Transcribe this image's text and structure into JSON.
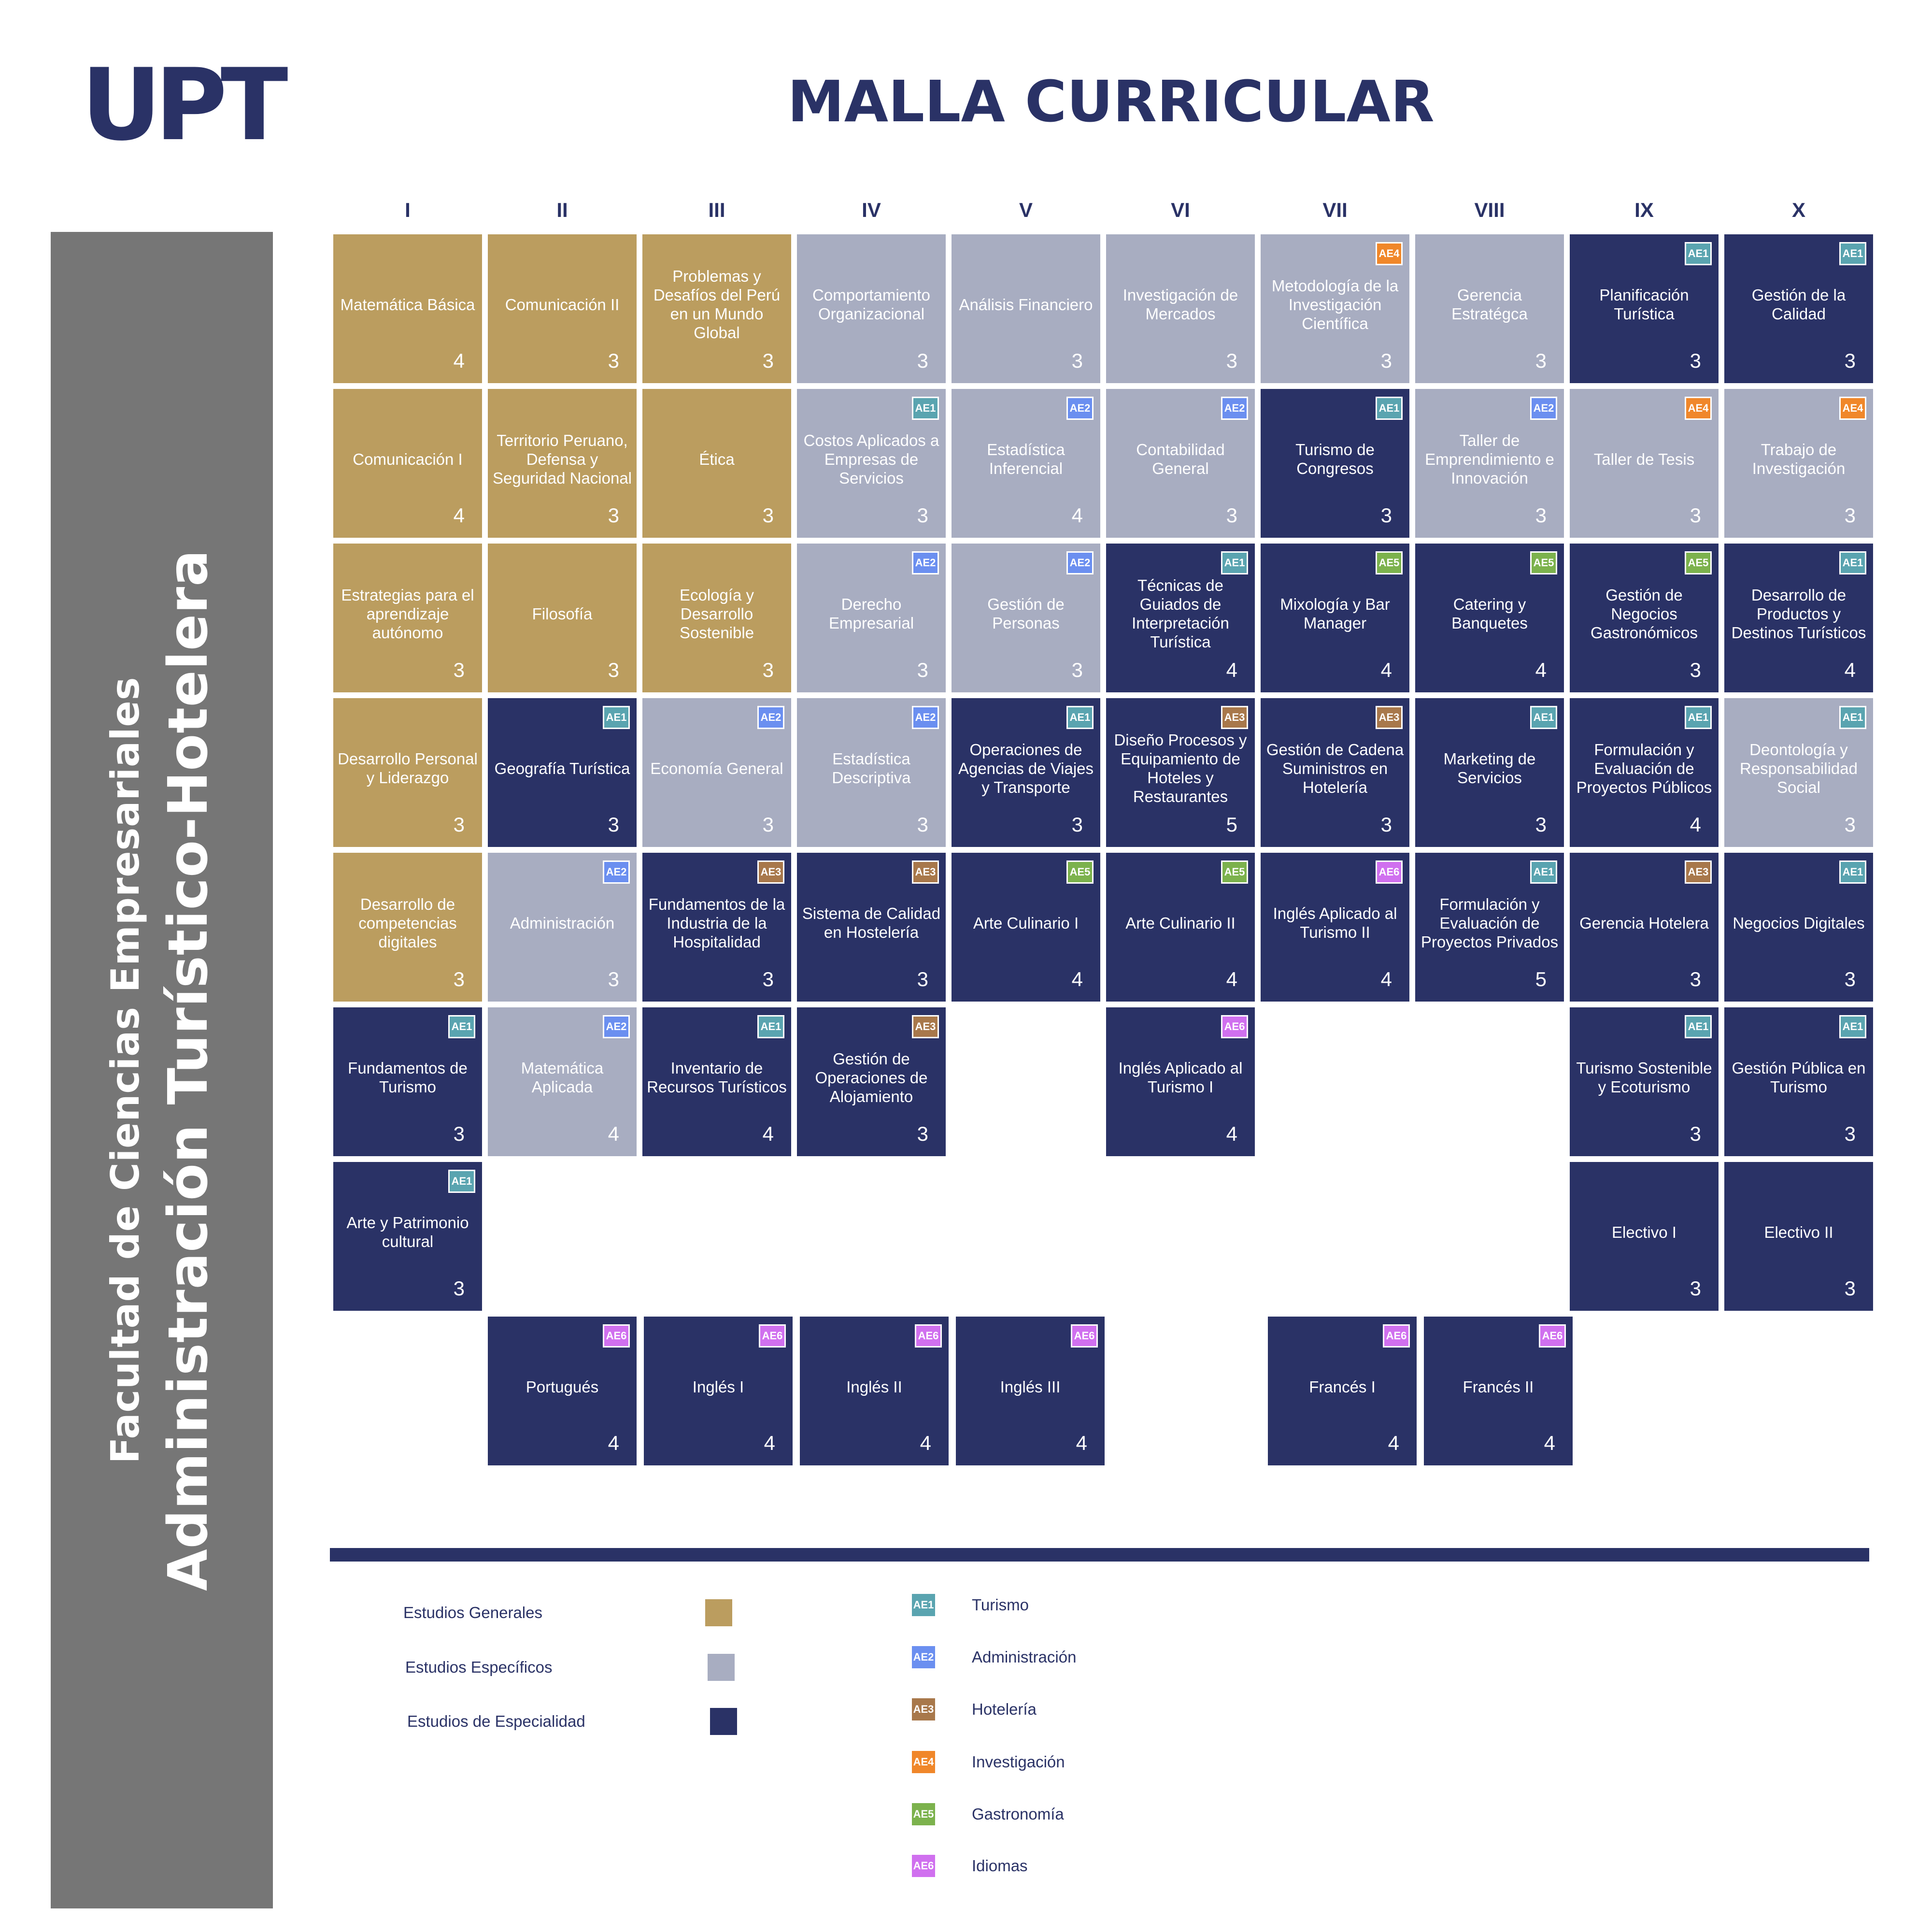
{
  "header": {
    "logo_text": "UPT",
    "title": "MALLA CURRICULAR"
  },
  "sidebar": {
    "faculty": "Facultad de Ciencias Empresariales",
    "career": "Administración Turístico-Hotelera"
  },
  "semesters": [
    "I",
    "II",
    "III",
    "IV",
    "V",
    "VI",
    "VII",
    "VIII",
    "IX",
    "X"
  ],
  "colors": {
    "general": "#bb9d5f",
    "especifico": "#a8adc1",
    "especialidad": "#2a3266",
    "AE1": "#5aa4b0",
    "AE2": "#6b8ff0",
    "AE3": "#a8784b",
    "AE4": "#f0872a",
    "AE5": "#7cb24d",
    "AE6": "#d070ef"
  },
  "courses": [
    {
      "col": 0,
      "row": 0,
      "name": "Matemática Básica",
      "credits": "4",
      "type": "general",
      "badge": ""
    },
    {
      "col": 1,
      "row": 0,
      "name": "Comunicación II",
      "credits": "3",
      "type": "general",
      "badge": ""
    },
    {
      "col": 2,
      "row": 0,
      "name": "Problemas y Desafíos del Perú en un Mundo Global",
      "credits": "3",
      "type": "general",
      "badge": ""
    },
    {
      "col": 3,
      "row": 0,
      "name": "Comportamiento Organizacional",
      "credits": "3",
      "type": "especifico",
      "badge": ""
    },
    {
      "col": 4,
      "row": 0,
      "name": "Análisis Financiero",
      "credits": "3",
      "type": "especifico",
      "badge": ""
    },
    {
      "col": 5,
      "row": 0,
      "name": "Investigación de Mercados",
      "credits": "3",
      "type": "especifico",
      "badge": ""
    },
    {
      "col": 6,
      "row": 0,
      "name": "Metodología de la Investigación Científica",
      "credits": "3",
      "type": "especifico",
      "badge": "AE4"
    },
    {
      "col": 7,
      "row": 0,
      "name": "Gerencia Estratégca",
      "credits": "3",
      "type": "especifico",
      "badge": ""
    },
    {
      "col": 8,
      "row": 0,
      "name": "Planificación Turística",
      "credits": "3",
      "type": "especialidad",
      "badge": "AE1"
    },
    {
      "col": 9,
      "row": 0,
      "name": "Gestión de la Calidad",
      "credits": "3",
      "type": "especialidad",
      "badge": "AE1"
    },
    {
      "col": 0,
      "row": 1,
      "name": "Comunicación I",
      "credits": "4",
      "type": "general",
      "badge": ""
    },
    {
      "col": 1,
      "row": 1,
      "name": "Territorio Peruano, Defensa y Seguridad Nacional",
      "credits": "3",
      "type": "general",
      "badge": ""
    },
    {
      "col": 2,
      "row": 1,
      "name": "Ética",
      "credits": "3",
      "type": "general",
      "badge": ""
    },
    {
      "col": 3,
      "row": 1,
      "name": "Costos Aplicados a Empresas de Servicios",
      "credits": "3",
      "type": "especifico",
      "badge": "AE1"
    },
    {
      "col": 4,
      "row": 1,
      "name": "Estadística Inferencial",
      "credits": "4",
      "type": "especifico",
      "badge": "AE2"
    },
    {
      "col": 5,
      "row": 1,
      "name": "Contabilidad General",
      "credits": "3",
      "type": "especifico",
      "badge": "AE2"
    },
    {
      "col": 6,
      "row": 1,
      "name": "Turismo de Congresos",
      "credits": "3",
      "type": "especialidad",
      "badge": "AE1"
    },
    {
      "col": 7,
      "row": 1,
      "name": "Taller de Emprendimiento e Innovación",
      "credits": "3",
      "type": "especifico",
      "badge": "AE2"
    },
    {
      "col": 8,
      "row": 1,
      "name": "Taller de Tesis",
      "credits": "3",
      "type": "especifico",
      "badge": "AE4"
    },
    {
      "col": 9,
      "row": 1,
      "name": "Trabajo de Investigación",
      "credits": "3",
      "type": "especifico",
      "badge": "AE4"
    },
    {
      "col": 0,
      "row": 2,
      "name": "Estrategias para el aprendizaje autónomo",
      "credits": "3",
      "type": "general",
      "badge": ""
    },
    {
      "col": 1,
      "row": 2,
      "name": "Filosofía",
      "credits": "3",
      "type": "general",
      "badge": ""
    },
    {
      "col": 2,
      "row": 2,
      "name": "Ecología y Desarrollo Sostenible",
      "credits": "3",
      "type": "general",
      "badge": ""
    },
    {
      "col": 3,
      "row": 2,
      "name": "Derecho Empresarial",
      "credits": "3",
      "type": "especifico",
      "badge": "AE2"
    },
    {
      "col": 4,
      "row": 2,
      "name": "Gestión de Personas",
      "credits": "3",
      "type": "especifico",
      "badge": "AE2"
    },
    {
      "col": 5,
      "row": 2,
      "name": "Técnicas de Guiados de Interpretación Turística",
      "credits": "4",
      "type": "especialidad",
      "badge": "AE1"
    },
    {
      "col": 6,
      "row": 2,
      "name": "Mixología y Bar Manager",
      "credits": "4",
      "type": "especialidad",
      "badge": "AE5"
    },
    {
      "col": 7,
      "row": 2,
      "name": "Catering y Banquetes",
      "credits": "4",
      "type": "especialidad",
      "badge": "AE5"
    },
    {
      "col": 8,
      "row": 2,
      "name": "Gestión de Negocios Gastronómicos",
      "credits": "3",
      "type": "especialidad",
      "badge": "AE5"
    },
    {
      "col": 9,
      "row": 2,
      "name": "Desarrollo de Productos y Destinos Turísticos",
      "credits": "4",
      "type": "especialidad",
      "badge": "AE1"
    },
    {
      "col": 0,
      "row": 3,
      "name": "Desarrollo Personal y Liderazgo",
      "credits": "3",
      "type": "general",
      "badge": ""
    },
    {
      "col": 1,
      "row": 3,
      "name": "Geografía Turística",
      "credits": "3",
      "type": "especialidad",
      "badge": "AE1"
    },
    {
      "col": 2,
      "row": 3,
      "name": "Economía General",
      "credits": "3",
      "type": "especifico",
      "badge": "AE2"
    },
    {
      "col": 3,
      "row": 3,
      "name": "Estadística Descriptiva",
      "credits": "3",
      "type": "especifico",
      "badge": "AE2"
    },
    {
      "col": 4,
      "row": 3,
      "name": "Operaciones de Agencias de Viajes y Transporte",
      "credits": "3",
      "type": "especialidad",
      "badge": "AE1"
    },
    {
      "col": 5,
      "row": 3,
      "name": "Diseño Procesos y Equipamiento de Hoteles y Restaurantes",
      "credits": "5",
      "type": "especialidad",
      "badge": "AE3"
    },
    {
      "col": 6,
      "row": 3,
      "name": "Gestión de Cadena Suministros en Hotelería",
      "credits": "3",
      "type": "especialidad",
      "badge": "AE3"
    },
    {
      "col": 7,
      "row": 3,
      "name": "Marketing de Servicios",
      "credits": "3",
      "type": "especialidad",
      "badge": "AE1"
    },
    {
      "col": 8,
      "row": 3,
      "name": "Formulación y Evaluación de Proyectos Públicos",
      "credits": "4",
      "type": "especialidad",
      "badge": "AE1"
    },
    {
      "col": 9,
      "row": 3,
      "name": "Deontología y Responsabilidad Social",
      "credits": "3",
      "type": "especifico",
      "badge": "AE1"
    },
    {
      "col": 0,
      "row": 4,
      "name": "Desarrollo de competencias digitales",
      "credits": "3",
      "type": "general",
      "badge": ""
    },
    {
      "col": 1,
      "row": 4,
      "name": "Administración",
      "credits": "3",
      "type": "especifico",
      "badge": "AE2"
    },
    {
      "col": 2,
      "row": 4,
      "name": "Fundamentos de la Industria de la Hospitalidad",
      "credits": "3",
      "type": "especialidad",
      "badge": "AE3"
    },
    {
      "col": 3,
      "row": 4,
      "name": "Sistema de Calidad en Hostelería",
      "credits": "3",
      "type": "especialidad",
      "badge": "AE3"
    },
    {
      "col": 4,
      "row": 4,
      "name": "Arte Culinario I",
      "credits": "4",
      "type": "especialidad",
      "badge": "AE5"
    },
    {
      "col": 5,
      "row": 4,
      "name": "Arte Culinario II",
      "credits": "4",
      "type": "especialidad",
      "badge": "AE5"
    },
    {
      "col": 6,
      "row": 4,
      "name": "Inglés Aplicado al Turismo II",
      "credits": "4",
      "type": "especialidad",
      "badge": "AE6"
    },
    {
      "col": 7,
      "row": 4,
      "name": "Formulación y Evaluación de Proyectos Privados",
      "credits": "5",
      "type": "especialidad",
      "badge": "AE1"
    },
    {
      "col": 8,
      "row": 4,
      "name": "Gerencia Hotelera",
      "credits": "3",
      "type": "especialidad",
      "badge": "AE3"
    },
    {
      "col": 9,
      "row": 4,
      "name": "Negocios Digitales",
      "credits": "3",
      "type": "especialidad",
      "badge": "AE1"
    },
    {
      "col": 0,
      "row": 5,
      "name": "Fundamentos de Turismo",
      "credits": "3",
      "type": "especialidad",
      "badge": "AE1"
    },
    {
      "col": 1,
      "row": 5,
      "name": "Matemática Aplicada",
      "credits": "4",
      "type": "especifico",
      "badge": "AE2"
    },
    {
      "col": 2,
      "row": 5,
      "name": "Inventario de Recursos Turísticos",
      "credits": "4",
      "type": "especialidad",
      "badge": "AE1"
    },
    {
      "col": 3,
      "row": 5,
      "name": "Gestión de Operaciones de Alojamiento",
      "credits": "3",
      "type": "especialidad",
      "badge": "AE3"
    },
    {
      "col": 5,
      "row": 5,
      "name": "Inglés Aplicado al Turismo I",
      "credits": "4",
      "type": "especialidad",
      "badge": "AE6"
    },
    {
      "col": 8,
      "row": 5,
      "name": "Turismo Sostenible y Ecoturismo",
      "credits": "3",
      "type": "especialidad",
      "badge": "AE1"
    },
    {
      "col": 9,
      "row": 5,
      "name": "Gestión Pública en Turismo",
      "credits": "3",
      "type": "especialidad",
      "badge": "AE1"
    },
    {
      "col": 0,
      "row": 6,
      "name": "Arte y Patrimonio cultural",
      "credits": "3",
      "type": "especialidad",
      "badge": "AE1"
    },
    {
      "col": 8,
      "row": 6,
      "name": "Electivo I",
      "credits": "3",
      "type": "especialidad",
      "badge": ""
    },
    {
      "col": 9,
      "row": 6,
      "name": "Electivo II",
      "credits": "3",
      "type": "especialidad",
      "badge": ""
    }
  ],
  "language_courses": [
    {
      "slot": 0,
      "name": "Portugués",
      "credits": "4",
      "badge": "AE6"
    },
    {
      "slot": 1,
      "name": "Inglés I",
      "credits": "4",
      "badge": "AE6"
    },
    {
      "slot": 2,
      "name": "Inglés II",
      "credits": "4",
      "badge": "AE6"
    },
    {
      "slot": 3,
      "name": "Inglés III",
      "credits": "4",
      "badge": "AE6"
    },
    {
      "slot": 5,
      "name": "Francés I",
      "credits": "4",
      "badge": "AE6"
    },
    {
      "slot": 6,
      "name": "Francés II",
      "credits": "4",
      "badge": "AE6"
    }
  ],
  "legend": {
    "study_types": [
      {
        "label": "Estudios Generales",
        "type": "general"
      },
      {
        "label": "Estudios Específicos",
        "type": "especifico"
      },
      {
        "label": "Estudios de Especialidad",
        "type": "especialidad"
      }
    ],
    "areas": [
      {
        "code": "AE1",
        "label": "Turismo"
      },
      {
        "code": "AE2",
        "label": "Administración"
      },
      {
        "code": "AE3",
        "label": "Hotelería"
      },
      {
        "code": "AE4",
        "label": "Investigación"
      },
      {
        "code": "AE5",
        "label": "Gastronomía"
      },
      {
        "code": "AE6",
        "label": "Idiomas"
      }
    ]
  }
}
